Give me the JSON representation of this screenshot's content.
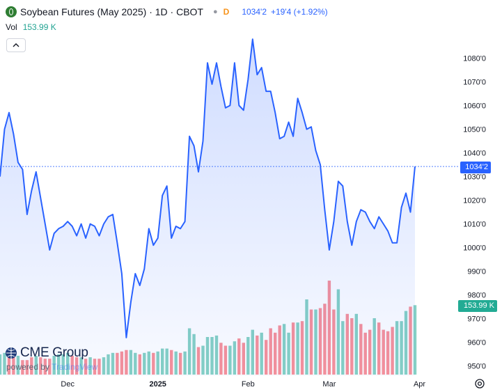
{
  "header": {
    "title": "Soybean Futures (May 2025) · 1D · CBOT",
    "status": "D",
    "last_price": "1034'2",
    "change": "+19'4 (+1.92%)",
    "icon": "soybean-icon"
  },
  "volume": {
    "label": "Vol",
    "value": "153.99 K"
  },
  "controls": {
    "collapse_icon": "chevron-up-icon",
    "settings_icon": "gear-icon"
  },
  "badges": {
    "price": "1034'2",
    "volume": "153.99 K"
  },
  "branding": {
    "logo": "CME Group",
    "powered_by": "powered by",
    "tradingview": "TradingView"
  },
  "colors": {
    "line": "#2962ff",
    "area": "#dfe7fd",
    "vol_up": "#22ab94",
    "vol_down": "#f23645",
    "price_badge": "#2962ff"
  },
  "chart_data": {
    "type": "area",
    "y_axis_labels": [
      "1080'0",
      "1070'0",
      "1060'0",
      "1050'0",
      "1040'0",
      "1030'0",
      "1020'0",
      "1010'0",
      "1000'0",
      "990'0",
      "980'0",
      "970'0",
      "960'0",
      "950'0"
    ],
    "x_axis_labels": [
      {
        "label": "Dec",
        "index": 15
      },
      {
        "label": "2025",
        "index": 35
      },
      {
        "label": "Feb",
        "index": 55
      },
      {
        "label": "Mar",
        "index": 73
      },
      {
        "label": "Apr",
        "index": 93
      }
    ],
    "ylim": [
      948,
      1090
    ],
    "last_price_line": 1034.25,
    "price": [
      1030,
      1050,
      1057,
      1048,
      1036,
      1033,
      1014,
      1024,
      1032,
      1021,
      1010,
      999,
      1006,
      1008,
      1009,
      1011,
      1009,
      1005,
      1010,
      1004,
      1010,
      1009,
      1005,
      1010,
      1013,
      1014,
      1002,
      989,
      962,
      977,
      989,
      984,
      991,
      1008,
      1001,
      1004,
      1022,
      1026,
      1004,
      1009,
      1008,
      1011,
      1047,
      1043,
      1032,
      1045,
      1078,
      1069,
      1078,
      1068,
      1059,
      1060,
      1078,
      1060,
      1058,
      1071,
      1088,
      1073,
      1076,
      1066,
      1066,
      1057,
      1046,
      1047,
      1053,
      1047,
      1063,
      1057,
      1050,
      1051,
      1041,
      1035,
      1016,
      999,
      1011,
      1028,
      1026,
      1011,
      1001,
      1011,
      1016,
      1015,
      1011,
      1008,
      1013,
      1010,
      1007,
      1002,
      1002,
      1017,
      1023,
      1015,
      1034.25
    ],
    "volume": [
      {
        "v": 28,
        "up": true
      },
      {
        "v": 30,
        "up": true
      },
      {
        "v": 24,
        "up": false
      },
      {
        "v": 24,
        "up": false
      },
      {
        "v": 26,
        "up": true
      },
      {
        "v": 20,
        "up": false
      },
      {
        "v": 20,
        "up": false
      },
      {
        "v": 24,
        "up": false
      },
      {
        "v": 26,
        "up": true
      },
      {
        "v": 24,
        "up": false
      },
      {
        "v": 22,
        "up": false
      },
      {
        "v": 22,
        "up": false
      },
      {
        "v": 26,
        "up": true
      },
      {
        "v": 28,
        "up": true
      },
      {
        "v": 28,
        "up": true
      },
      {
        "v": 30,
        "up": true
      },
      {
        "v": 26,
        "up": false
      },
      {
        "v": 24,
        "up": false
      },
      {
        "v": 24,
        "up": true
      },
      {
        "v": 22,
        "up": false
      },
      {
        "v": 24,
        "up": true
      },
      {
        "v": 22,
        "up": false
      },
      {
        "v": 22,
        "up": false
      },
      {
        "v": 24,
        "up": true
      },
      {
        "v": 28,
        "up": true
      },
      {
        "v": 30,
        "up": true
      },
      {
        "v": 30,
        "up": false
      },
      {
        "v": 32,
        "up": false
      },
      {
        "v": 34,
        "up": false
      },
      {
        "v": 34,
        "up": true
      },
      {
        "v": 30,
        "up": true
      },
      {
        "v": 28,
        "up": false
      },
      {
        "v": 30,
        "up": true
      },
      {
        "v": 32,
        "up": true
      },
      {
        "v": 30,
        "up": false
      },
      {
        "v": 32,
        "up": true
      },
      {
        "v": 36,
        "up": true
      },
      {
        "v": 36,
        "up": true
      },
      {
        "v": 34,
        "up": false
      },
      {
        "v": 32,
        "up": true
      },
      {
        "v": 30,
        "up": false
      },
      {
        "v": 32,
        "up": true
      },
      {
        "v": 64,
        "up": true
      },
      {
        "v": 56,
        "up": true
      },
      {
        "v": 38,
        "up": false
      },
      {
        "v": 40,
        "up": true
      },
      {
        "v": 52,
        "up": true
      },
      {
        "v": 52,
        "up": true
      },
      {
        "v": 54,
        "up": true
      },
      {
        "v": 44,
        "up": false
      },
      {
        "v": 40,
        "up": false
      },
      {
        "v": 40,
        "up": true
      },
      {
        "v": 46,
        "up": true
      },
      {
        "v": 50,
        "up": false
      },
      {
        "v": 44,
        "up": false
      },
      {
        "v": 52,
        "up": true
      },
      {
        "v": 62,
        "up": true
      },
      {
        "v": 54,
        "up": false
      },
      {
        "v": 58,
        "up": true
      },
      {
        "v": 48,
        "up": false
      },
      {
        "v": 64,
        "up": false
      },
      {
        "v": 58,
        "up": false
      },
      {
        "v": 68,
        "up": false
      },
      {
        "v": 70,
        "up": true
      },
      {
        "v": 58,
        "up": true
      },
      {
        "v": 72,
        "up": false
      },
      {
        "v": 72,
        "up": true
      },
      {
        "v": 74,
        "up": false
      },
      {
        "v": 104,
        "up": true
      },
      {
        "v": 90,
        "up": false
      },
      {
        "v": 90,
        "up": true
      },
      {
        "v": 92,
        "up": false
      },
      {
        "v": 98,
        "up": false
      },
      {
        "v": 130,
        "up": false
      },
      {
        "v": 90,
        "up": false
      },
      {
        "v": 118,
        "up": true
      },
      {
        "v": 74,
        "up": true
      },
      {
        "v": 84,
        "up": false
      },
      {
        "v": 78,
        "up": false
      },
      {
        "v": 84,
        "up": true
      },
      {
        "v": 70,
        "up": false
      },
      {
        "v": 58,
        "up": false
      },
      {
        "v": 62,
        "up": false
      },
      {
        "v": 78,
        "up": true
      },
      {
        "v": 72,
        "up": false
      },
      {
        "v": 62,
        "up": false
      },
      {
        "v": 60,
        "up": false
      },
      {
        "v": 66,
        "up": false
      },
      {
        "v": 74,
        "up": true
      },
      {
        "v": 74,
        "up": true
      },
      {
        "v": 88,
        "up": true
      },
      {
        "v": 94,
        "up": false
      },
      {
        "v": 96,
        "up": true
      }
    ],
    "volume_max": 130
  }
}
